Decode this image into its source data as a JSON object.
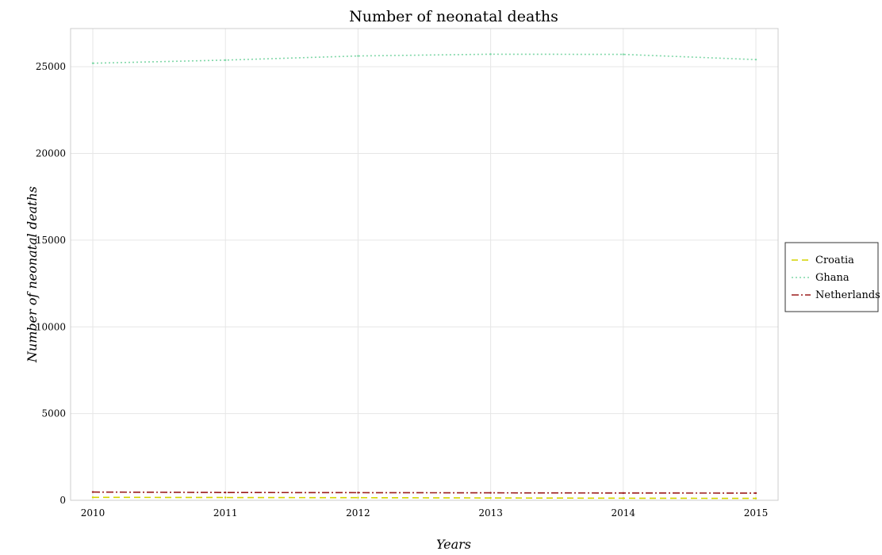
{
  "chart_data": {
    "type": "line",
    "title": "Number of neonatal deaths",
    "xlabel": "Years",
    "ylabel": "Number of neonatal deaths",
    "categories": [
      "2010",
      "2011",
      "2012",
      "2013",
      "2014",
      "2015"
    ],
    "x_ticks": [
      "2010",
      "2011",
      "2012",
      "2013",
      "2014",
      "2015"
    ],
    "y_ticks": [
      "0",
      "5000",
      "10000",
      "15000",
      "20000",
      "25000"
    ],
    "ylim": [
      0,
      27200
    ],
    "grid": true,
    "legend_position": "right",
    "series": [
      {
        "name": "Croatia",
        "color": "#d4d400",
        "dash": "dashed",
        "values": [
          170,
          160,
          150,
          135,
          120,
          110
        ]
      },
      {
        "name": "Ghana",
        "color": "#7fd7a7",
        "dash": "dotted",
        "values": [
          25200,
          25380,
          25620,
          25720,
          25710,
          25410
        ]
      },
      {
        "name": "Netherlands",
        "color": "#9b1b1b",
        "dash": "dashdot",
        "values": [
          475,
          450,
          440,
          430,
          420,
          415
        ]
      }
    ]
  }
}
